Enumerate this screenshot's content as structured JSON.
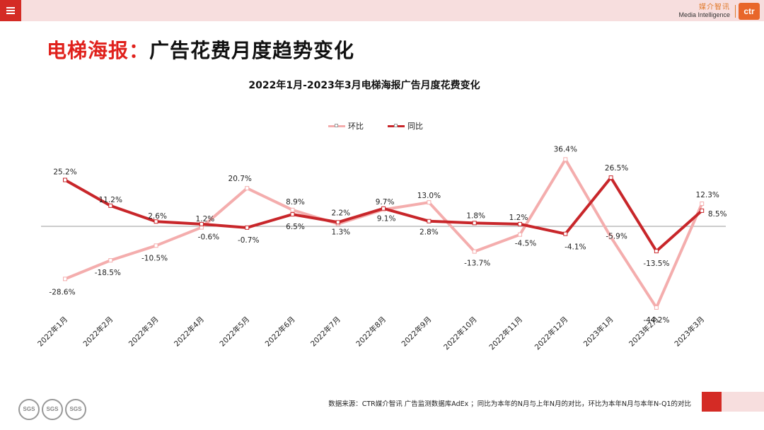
{
  "header": {
    "menu_icon": "hamburger-menu-icon",
    "brand_cn": "媒介智讯",
    "brand_en": "Media Intelligence",
    "brand_logo": "ctr",
    "colors": {
      "accent_red": "#d42b25",
      "top_bar": "#f7dede",
      "brand_orange": "#e8662a"
    }
  },
  "page": {
    "title_highlight": "电梯海报：",
    "title_rest": "广告花费月度趋势变化"
  },
  "chart_data": {
    "type": "line",
    "title": "2022年1月-2023年3月电梯海报广告月度花费变化",
    "categories": [
      "2022年1月",
      "2022年2月",
      "2022年3月",
      "2022年4月",
      "2022年5月",
      "2022年6月",
      "2022年7月",
      "2022年8月",
      "2022年9月",
      "2022年10月",
      "2022年11月",
      "2022年12月",
      "2023年1月",
      "2023年2月",
      "2023年3月"
    ],
    "series": [
      {
        "name": "环比",
        "color": "#f4adad",
        "values": [
          -28.6,
          -18.5,
          -10.5,
          -0.6,
          20.7,
          8.9,
          1.3,
          9.1,
          13.0,
          -13.7,
          -4.5,
          36.4,
          -5.9,
          -44.2,
          12.3
        ],
        "labels": [
          "-28.6%",
          "-18.5%",
          "-10.5%",
          "-0.6%",
          "20.7%",
          "8.9%",
          "1.3%",
          "9.1%",
          "13.0%",
          "-13.7%",
          "-4.5%",
          "36.4%",
          "-5.9%",
          "-44.2%",
          "12.3%"
        ]
      },
      {
        "name": "同比",
        "color": "#c8262a",
        "values": [
          25.2,
          11.2,
          2.6,
          1.2,
          -0.7,
          6.5,
          2.2,
          9.7,
          2.8,
          1.8,
          1.2,
          -4.1,
          26.5,
          -13.5,
          8.5
        ],
        "labels": [
          "25.2%",
          "11.2%",
          "2.6%",
          "1.2%",
          "-0.7%",
          "6.5%",
          "2.2%",
          "9.7%",
          "2.8%",
          "1.8%",
          "1.2%",
          "-4.1%",
          "26.5%",
          "-13.5%",
          "8.5%"
        ]
      }
    ],
    "xlabel": "",
    "ylabel": "",
    "ylim": [
      -50,
      40
    ],
    "grid": false,
    "legend": "top-center"
  },
  "footer": {
    "source": "数据来源：CTR媒介智讯 广告监测数据库AdEx ；同比为本年的N月与上年N月的对比，环比为本年N月与本年N-Q1的对比",
    "badges": [
      "SGS",
      "SGS",
      "SGS"
    ]
  }
}
